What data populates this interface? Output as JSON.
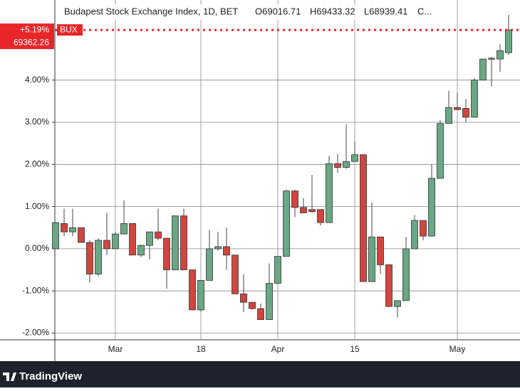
{
  "chart_data": {
    "type": "candlestick",
    "title": "Budapest Stock Exchange Index, 1D, BET",
    "legend_values": [
      "O69016.71",
      "H69433.32",
      "L68939.41",
      "C..."
    ],
    "footer": "TradingView",
    "categories": [
      null,
      null,
      null,
      null,
      null,
      null,
      null,
      "Mar",
      null,
      null,
      null,
      null,
      null,
      null,
      null,
      null,
      null,
      "18",
      null,
      null,
      null,
      null,
      null,
      null,
      null,
      null,
      "Apr",
      null,
      null,
      null,
      null,
      null,
      null,
      null,
      null,
      "15",
      null,
      null,
      null,
      null,
      null,
      null,
      null,
      null,
      null,
      null,
      null,
      "May",
      null,
      null,
      null,
      null,
      null,
      null
    ],
    "series": [
      {
        "up_color": "#6aa784",
        "down_color": "#d1453f",
        "open": [
          0.0,
          0.6,
          0.4,
          0.5,
          0.15,
          -0.6,
          0.2,
          0.0,
          0.35,
          0.6,
          -0.15,
          0.08,
          0.4,
          0.25,
          -0.5,
          0.78,
          -0.5,
          -1.45,
          -0.75,
          0.0,
          0.05,
          -0.15,
          -1.07,
          -1.27,
          -1.42,
          -1.68,
          -0.82,
          -0.18,
          1.37,
          0.98,
          0.93,
          0.93,
          0.62,
          2.02,
          1.93,
          2.07,
          2.23,
          -0.78,
          0.28,
          -0.38,
          -1.37,
          -1.23,
          0.0,
          0.67,
          0.3,
          1.67,
          2.97,
          3.35,
          3.33,
          3.12,
          4.0,
          4.5,
          4.5,
          4.65
        ],
        "high": [
          0.62,
          0.95,
          0.95,
          0.5,
          0.2,
          0.25,
          0.85,
          0.4,
          1.15,
          0.6,
          0.1,
          0.4,
          0.95,
          0.25,
          0.78,
          0.95,
          -0.5,
          -0.75,
          0.45,
          0.4,
          0.5,
          -0.15,
          -0.6,
          -1.27,
          -1.3,
          -0.35,
          -0.18,
          1.4,
          1.4,
          1.2,
          1.75,
          0.93,
          2.2,
          2.25,
          2.95,
          2.55,
          2.23,
          1.1,
          0.28,
          -0.38,
          -1.23,
          0.28,
          0.8,
          0.67,
          2.0,
          3.05,
          3.75,
          3.7,
          3.55,
          4.05,
          4.5,
          4.55,
          4.85,
          5.55
        ],
        "low": [
          0.0,
          0.3,
          0.3,
          0.15,
          -0.8,
          -0.65,
          -0.15,
          0.0,
          0.35,
          -0.15,
          -0.2,
          -0.25,
          0.2,
          -0.95,
          -0.5,
          -0.5,
          -1.45,
          -1.5,
          -0.75,
          -0.05,
          -0.5,
          -1.07,
          -1.5,
          -1.45,
          -1.68,
          -1.68,
          -0.82,
          -0.18,
          0.75,
          0.85,
          0.85,
          0.55,
          0.62,
          1.8,
          1.9,
          2.07,
          -0.78,
          -0.78,
          -0.6,
          -1.37,
          -1.63,
          -1.23,
          0.0,
          0.2,
          0.3,
          1.67,
          2.97,
          3.3,
          3.0,
          3.12,
          4.0,
          3.85,
          4.2,
          4.6
        ],
        "close": [
          0.62,
          0.4,
          0.5,
          0.15,
          -0.6,
          0.2,
          0.0,
          0.35,
          0.6,
          -0.15,
          0.08,
          0.4,
          0.25,
          -0.5,
          0.78,
          -0.5,
          -1.45,
          -0.75,
          0.0,
          0.05,
          -0.15,
          -1.07,
          -1.27,
          -1.42,
          -1.68,
          -0.82,
          -0.18,
          1.37,
          0.98,
          0.85,
          0.88,
          0.62,
          2.02,
          1.93,
          2.07,
          2.23,
          -0.78,
          0.28,
          -0.38,
          -1.37,
          -1.23,
          0.0,
          0.67,
          0.3,
          1.67,
          2.97,
          3.35,
          3.3,
          3.12,
          4.0,
          4.5,
          4.52,
          4.7,
          5.19
        ]
      }
    ],
    "ylim": [
      -2.16,
      5.9
    ],
    "yticks": [
      {
        "value": -2,
        "label": "-2.00%"
      },
      {
        "value": -1,
        "label": "-1.00%"
      },
      {
        "value": 0,
        "label": "0.00%"
      },
      {
        "value": 1,
        "label": "1.00%"
      },
      {
        "value": 2,
        "label": "2.00%"
      },
      {
        "value": 3,
        "label": "3.00%"
      },
      {
        "value": 4,
        "label": "4.00%"
      }
    ],
    "grid": true,
    "price_line": {
      "value": 5.19,
      "label": "+5.19%",
      "price": 69362.26,
      "symbol": "BUX",
      "color": "#e8262a"
    }
  }
}
